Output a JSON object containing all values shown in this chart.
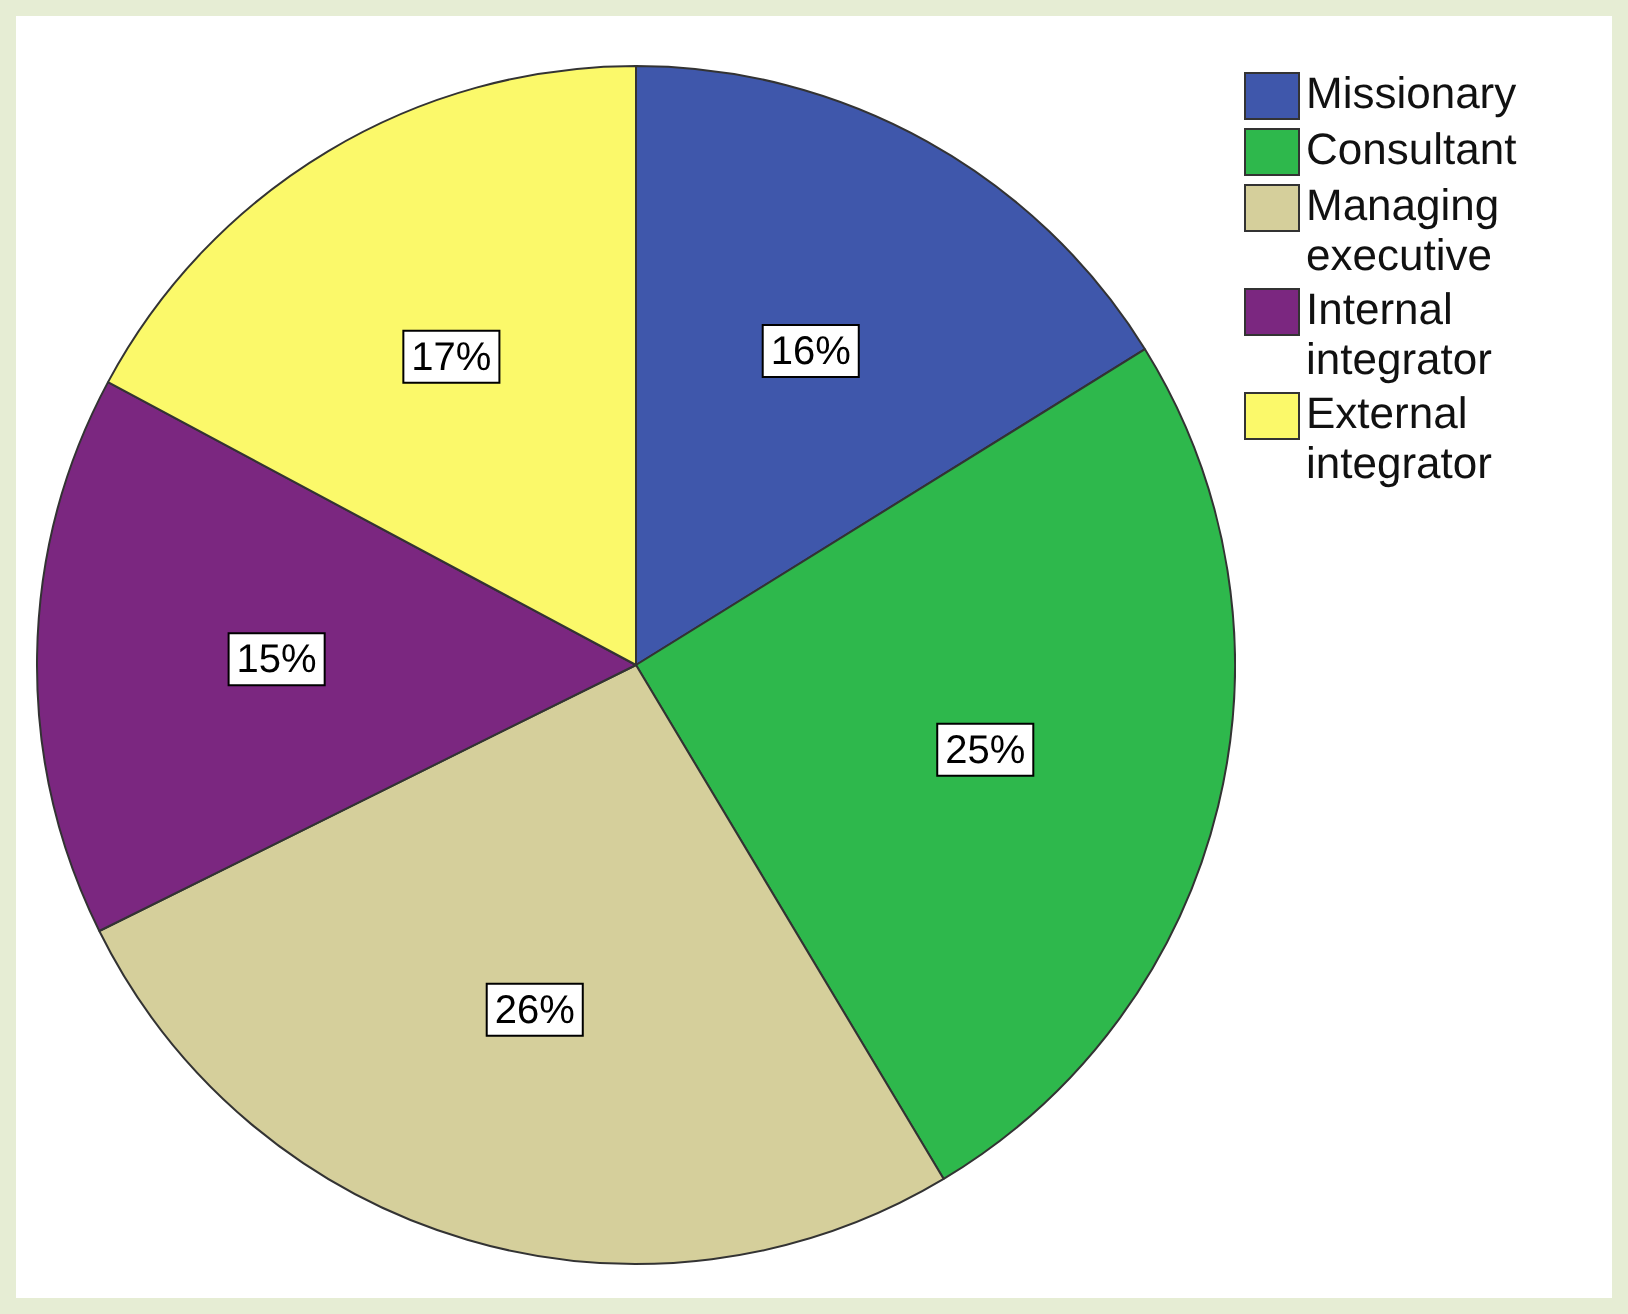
{
  "chart_data": {
    "type": "pie",
    "categories": [
      "Missionary",
      "Consultant",
      "Managing executive",
      "Internal integrator",
      "External integrator"
    ],
    "values": [
      16,
      25,
      26,
      15,
      17
    ],
    "colors": [
      "#3f57ab",
      "#2eb84c",
      "#d5cf9b",
      "#7b2780",
      "#fbf96a"
    ],
    "value_labels": [
      "16%",
      "25%",
      "26%",
      "15%",
      "17%"
    ],
    "legend": "top right"
  }
}
